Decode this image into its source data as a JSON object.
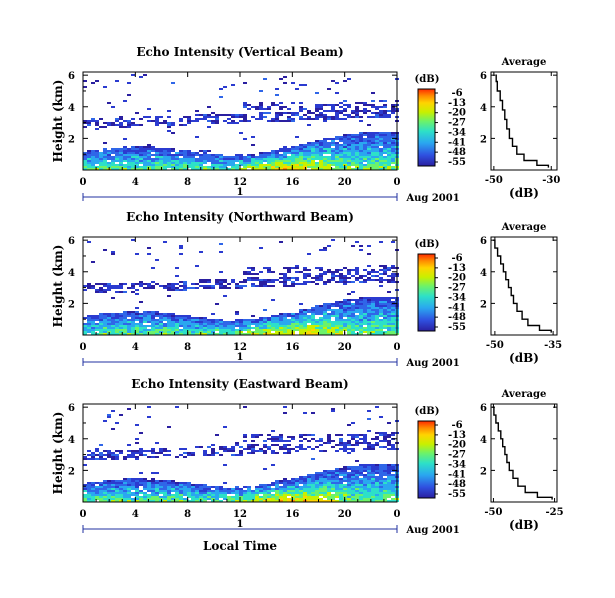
{
  "chart_data": [
    {
      "type": "heatmap",
      "title": "Echo Intensity (Vertical Beam)",
      "ylabel": "Height (km)",
      "xlabel": "",
      "x_ticks": [
        "0",
        "4",
        "8",
        "12",
        "16",
        "20",
        "0"
      ],
      "y_ticks": [
        "2",
        "4",
        "6"
      ],
      "xlim": [
        0,
        24
      ],
      "ylim": [
        0,
        6.2
      ],
      "date_label": "Aug 2001",
      "day_label": "1",
      "colorbar": {
        "unit": "(dB)",
        "ticks": [
          "-6",
          "-13",
          "-20",
          "-27",
          "-34",
          "-41",
          "-48",
          "-55"
        ]
      },
      "profile": {
        "title": "Average",
        "xlabel": "(dB)",
        "x_ticks": [
          "-50",
          "-30"
        ],
        "xlim": [
          -51,
          -28
        ],
        "y_ticks": [
          "2",
          "4",
          "6"
        ],
        "ylim": [
          0,
          6.2
        ],
        "points": [
          [
            -49.5,
            6.0
          ],
          [
            -49.2,
            5.6
          ],
          [
            -48.8,
            5.0
          ],
          [
            -47.8,
            4.4
          ],
          [
            -47.0,
            3.8
          ],
          [
            -46.2,
            3.2
          ],
          [
            -45.5,
            2.6
          ],
          [
            -44.6,
            2.0
          ],
          [
            -43.5,
            1.5
          ],
          [
            -42.0,
            1.0
          ],
          [
            -39.5,
            0.6
          ],
          [
            -35.0,
            0.3
          ],
          [
            -31.0,
            0.15
          ]
        ]
      }
    },
    {
      "type": "heatmap",
      "title": "Echo Intensity (Northward Beam)",
      "ylabel": "Height (km)",
      "xlabel": "",
      "x_ticks": [
        "0",
        "4",
        "8",
        "12",
        "16",
        "20",
        "0"
      ],
      "y_ticks": [
        "2",
        "4",
        "6"
      ],
      "xlim": [
        0,
        24
      ],
      "ylim": [
        0,
        6.2
      ],
      "date_label": "Aug 2001",
      "day_label": "1",
      "colorbar": {
        "unit": "(dB)",
        "ticks": [
          "-6",
          "-13",
          "-20",
          "-27",
          "-34",
          "-41",
          "-48",
          "-55"
        ]
      },
      "profile": {
        "title": "Average",
        "xlabel": "(dB)",
        "x_ticks": [
          "-50",
          "-35"
        ],
        "xlim": [
          -51,
          -34
        ],
        "y_ticks": [
          "2",
          "4",
          "6"
        ],
        "ylim": [
          0,
          6.2
        ],
        "points": [
          [
            -50.5,
            6.0
          ],
          [
            -50.0,
            5.5
          ],
          [
            -49.3,
            5.0
          ],
          [
            -48.5,
            4.5
          ],
          [
            -47.8,
            4.0
          ],
          [
            -47.2,
            3.5
          ],
          [
            -46.5,
            3.0
          ],
          [
            -45.8,
            2.5
          ],
          [
            -45.2,
            2.0
          ],
          [
            -44.3,
            1.5
          ],
          [
            -43.0,
            1.0
          ],
          [
            -41.5,
            0.6
          ],
          [
            -38.5,
            0.3
          ],
          [
            -35.5,
            0.15
          ]
        ]
      }
    },
    {
      "type": "heatmap",
      "title": "Echo Intensity (Eastward Beam)",
      "ylabel": "Height (km)",
      "xlabel": "Local Time",
      "x_ticks": [
        "0",
        "4",
        "8",
        "12",
        "16",
        "20",
        "0"
      ],
      "y_ticks": [
        "2",
        "4",
        "6"
      ],
      "xlim": [
        0,
        24
      ],
      "ylim": [
        0,
        6.2
      ],
      "date_label": "Aug 2001",
      "day_label": "1",
      "colorbar": {
        "unit": "(dB)",
        "ticks": [
          "-6",
          "-13",
          "-20",
          "-27",
          "-34",
          "-41",
          "-48",
          "-55"
        ]
      },
      "profile": {
        "title": "Average",
        "xlabel": "(dB)",
        "x_ticks": [
          "-50",
          "-25"
        ],
        "xlim": [
          -51,
          -24
        ],
        "y_ticks": [
          "2",
          "4",
          "6"
        ],
        "ylim": [
          0,
          6.2
        ],
        "points": [
          [
            -50.5,
            6.0
          ],
          [
            -49.8,
            5.5
          ],
          [
            -49.0,
            5.0
          ],
          [
            -48.0,
            4.5
          ],
          [
            -47.0,
            4.0
          ],
          [
            -46.2,
            3.5
          ],
          [
            -45.3,
            3.0
          ],
          [
            -44.5,
            2.5
          ],
          [
            -43.5,
            2.0
          ],
          [
            -42.0,
            1.5
          ],
          [
            -40.0,
            1.0
          ],
          [
            -37.0,
            0.6
          ],
          [
            -32.0,
            0.3
          ],
          [
            -26.0,
            0.15
          ]
        ]
      }
    }
  ],
  "colorscale": [
    "#ff2a00",
    "#ff8c00",
    "#ffd400",
    "#c8f000",
    "#6cf26a",
    "#2de0c8",
    "#2aa7f0",
    "#2f66e8",
    "#2b3bd0",
    "#2a1fa0"
  ]
}
